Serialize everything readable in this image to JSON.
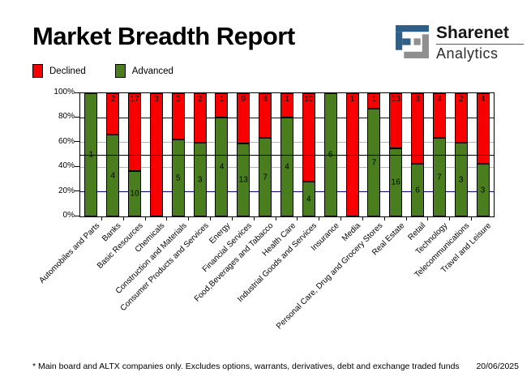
{
  "header": {
    "title": "Market Breadth Report"
  },
  "logo": {
    "brand": "Sharenet",
    "sub": "Analytics",
    "blue": "#2e5f88",
    "gray": "#8f8f8f"
  },
  "legend": [
    {
      "label": "Declined",
      "color": "#f80000"
    },
    {
      "label": "Advanced",
      "color": "#4a7d1e"
    }
  ],
  "chart_data": {
    "type": "bar",
    "stacked": true,
    "normalized": "percent_of_total",
    "title": "Market Breadth Report",
    "categories": [
      "Automobiles and Parts",
      "Banks",
      "Basic Resources",
      "Chemicals",
      "Construction and Materials",
      "Consumer Products and Services",
      "Energy",
      "Financial Services",
      "Food,Beverages and Tabacco",
      "Health Care",
      "Industrial Goods and Services",
      "Insurance",
      "Media",
      "Personal Care, Drug and Grocery Stores",
      "Real Estate",
      "Retail",
      "Technology",
      "Telecommunications",
      "Travel and Leisure"
    ],
    "series": [
      {
        "name": "Declined",
        "color": "#f80000",
        "values": [
          0,
          2,
          17,
          3,
          3,
          2,
          1,
          9,
          4,
          1,
          10,
          0,
          1,
          1,
          13,
          8,
          4,
          2,
          4
        ]
      },
      {
        "name": "Advanced",
        "color": "#4a7d1e",
        "values": [
          1,
          4,
          10,
          0,
          5,
          3,
          4,
          13,
          7,
          4,
          4,
          6,
          0,
          7,
          16,
          6,
          7,
          3,
          3
        ]
      }
    ],
    "y_ticks": [
      "100%",
      "80%",
      "60%",
      "40%",
      "20%",
      "0%"
    ],
    "ylim": [
      0,
      100
    ],
    "reference_line_pct": 50,
    "gridlines": [
      {
        "pct": 80,
        "color": "#000080"
      },
      {
        "pct": 60,
        "color": "#b4b4b4"
      },
      {
        "pct": 40,
        "color": "#b4b4b4"
      },
      {
        "pct": 20,
        "color": "#000080"
      }
    ],
    "legend_position": "top-left"
  },
  "footer": {
    "note": "* Main board and ALTX companies only. Excludes options, warrants, derivatives, debt and exchange traded funds",
    "date": "20/06/2025"
  }
}
